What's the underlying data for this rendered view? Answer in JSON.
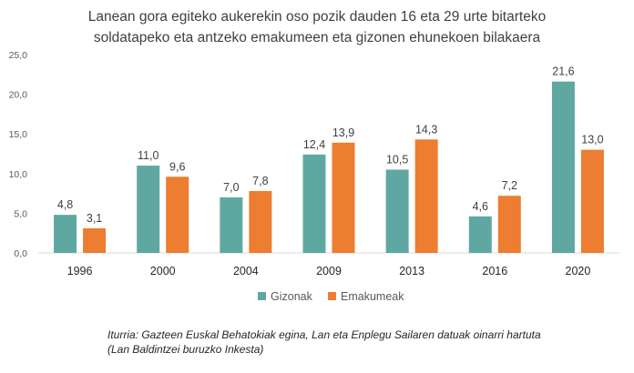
{
  "chart_data": {
    "type": "bar",
    "title_lines": [
      "Lanean gora egiteko aukerekin oso pozik dauden 16 eta 29 urte bitarteko",
      "soldatapeko eta antzeko emakumeen eta gizonen ehunekoen bilakaera"
    ],
    "categories": [
      "1996",
      "2000",
      "2004",
      "2009",
      "2013",
      "2016",
      "2020"
    ],
    "series": [
      {
        "name": "Gizonak",
        "color": "#5fa8a2",
        "values": [
          4.8,
          11.0,
          7.0,
          12.4,
          10.5,
          4.6,
          21.6
        ]
      },
      {
        "name": "Emakumeak",
        "color": "#ed7d31",
        "values": [
          3.1,
          9.6,
          7.8,
          13.9,
          14.3,
          7.2,
          13.0
        ]
      }
    ],
    "ylim": [
      0,
      25
    ],
    "yticks": [
      0,
      5,
      10,
      15,
      20,
      25
    ],
    "decimal_separator": ",",
    "grid": false,
    "legend_position": "bottom",
    "source_lines": [
      "Iturria: Gazteen Euskal Behatokiak egina, Lan eta Enplegu Sailaren datuak oinarri hartuta",
      "(Lan Baldintzei buruzko Inkesta)"
    ]
  }
}
